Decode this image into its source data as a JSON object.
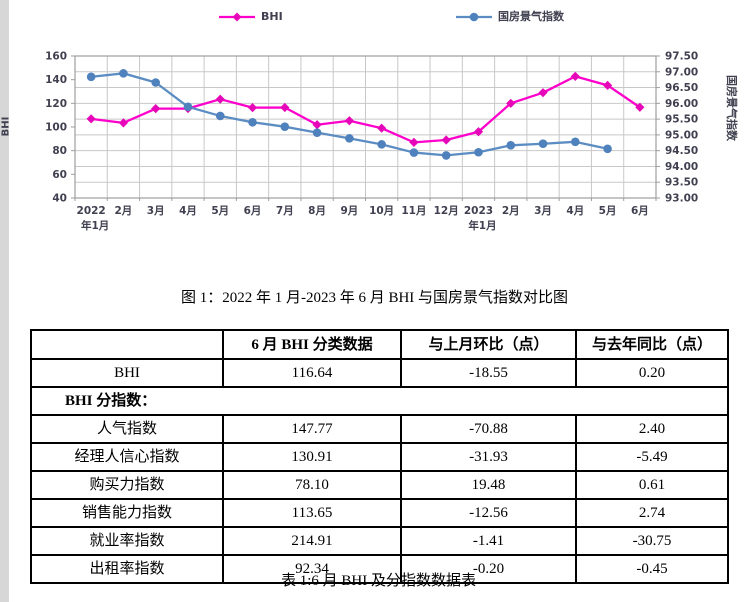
{
  "chart_data": {
    "type": "line",
    "categories": [
      "2022",
      "2月",
      "3月",
      "4月",
      "5月",
      "6月",
      "7月",
      "8月",
      "9月",
      "10月",
      "11月",
      "12月",
      "2023",
      "2月",
      "3月",
      "4月",
      "5月",
      "6月"
    ],
    "sublabels": {
      "0": "年1月",
      "12": "年1月"
    },
    "axes": {
      "left": {
        "title": "BHI",
        "min": 40,
        "max": 160,
        "step": 20
      },
      "right": {
        "title": "国房景气指数",
        "min": 93.0,
        "max": 97.5,
        "step": 0.5,
        "decimals": 2
      }
    },
    "grid": "on",
    "legend_position": "top",
    "series": [
      {
        "name": "BHI",
        "axis": "left",
        "marker": "diamond",
        "color": "#FF00CC",
        "marker_color": "#E607B8",
        "values": [
          106.9,
          103.5,
          115.5,
          115.6,
          123.5,
          116.4,
          116.5,
          101.9,
          105.3,
          99.0,
          87.0,
          89.0,
          96.0,
          120.0,
          129.0,
          142.8,
          135.2,
          116.64
        ]
      },
      {
        "name": "国房景气指数",
        "axis": "right",
        "marker": "circle",
        "color": "#5B8DC3",
        "marker_color": "#4F81BD",
        "values": [
          96.84,
          96.95,
          96.66,
          95.89,
          95.6,
          95.4,
          95.26,
          95.07,
          94.89,
          94.7,
          94.44,
          94.35,
          94.45,
          94.67,
          94.72,
          94.78,
          94.56,
          null
        ]
      }
    ]
  },
  "figure_caption": "图 1：2022 年 1 月-2023 年 6 月 BHI 与国房景气指数对比图",
  "table_caption": "表 1:6 月 BHI 及分指数数据表",
  "table": {
    "headers": [
      "",
      "6 月 BHI 分类数据",
      "与上月环比（点）",
      "与去年同比（点）"
    ],
    "bhi_row": {
      "label": "BHI",
      "data": "116.64",
      "mom": "-18.55",
      "yoy": "0.20"
    },
    "section_label": "BHI 分指数：",
    "rows": [
      {
        "label": "人气指数",
        "data": "147.77",
        "mom": "-70.88",
        "yoy": "2.40"
      },
      {
        "label": "经理人信心指数",
        "data": "130.91",
        "mom": "-31.93",
        "yoy": "-5.49"
      },
      {
        "label": "购买力指数",
        "data": "78.10",
        "mom": "19.48",
        "yoy": "0.61"
      },
      {
        "label": "销售能力指数",
        "data": "113.65",
        "mom": "-12.56",
        "yoy": "2.74"
      },
      {
        "label": "就业率指数",
        "data": "214.91",
        "mom": "-1.41",
        "yoy": "-30.75"
      },
      {
        "label": "出租率指数",
        "data": "92.34",
        "mom": "-0.20",
        "yoy": "-0.45"
      }
    ]
  }
}
